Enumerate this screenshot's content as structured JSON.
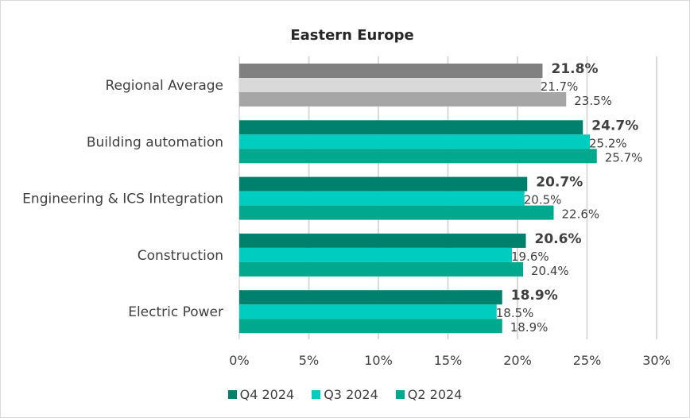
{
  "chart_data": {
    "type": "bar",
    "orientation": "horizontal",
    "title": "Eastern Europe",
    "xlabel": "",
    "ylabel": "",
    "xlim": [
      0,
      30
    ],
    "xticks": [
      "0%",
      "5%",
      "10%",
      "15%",
      "20%",
      "25%",
      "30%"
    ],
    "grid": true,
    "legend_position": "bottom",
    "categories": [
      "Regional Average",
      "Building automation",
      "Engineering & ICS Integration",
      "Construction",
      "Electric Power"
    ],
    "series": [
      {
        "name": "Q4 2024",
        "color": "#00816D",
        "values": [
          21.8,
          24.7,
          20.7,
          20.6,
          18.9
        ],
        "labels": [
          "21.8%",
          "24.7%",
          "20.7%",
          "20.6%",
          "18.9%"
        ]
      },
      {
        "name": "Q3 2024",
        "color": "#00CCC0",
        "values": [
          21.7,
          25.2,
          20.5,
          19.6,
          18.5
        ],
        "labels": [
          "21.7%",
          "25.2%",
          "20.5%",
          "19.6%",
          "18.5%"
        ]
      },
      {
        "name": "Q2 2024",
        "color": "#00A88E",
        "values": [
          23.5,
          25.7,
          22.6,
          20.4,
          18.9
        ],
        "labels": [
          "23.5%",
          "25.7%",
          "22.6%",
          "20.4%",
          "18.9%"
        ]
      }
    ],
    "regional_average_colors": [
      "#808080",
      "#D9D9D9",
      "#A6A6A6"
    ]
  }
}
